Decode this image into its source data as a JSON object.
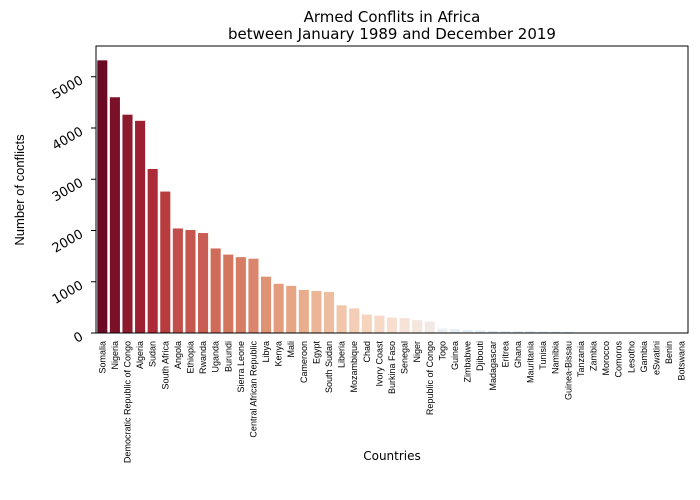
{
  "chart_data": {
    "type": "bar",
    "title": [
      "Armed Conflits in Africa",
      "between January 1989 and December 2019"
    ],
    "xlabel": "Countries",
    "ylabel": "Number of conflicts",
    "ylim": [
      0,
      5600
    ],
    "yticks": [
      0,
      1000,
      2000,
      3000,
      4000,
      5000
    ],
    "grid": false,
    "colormap": "RdBu",
    "categories": [
      "Somalia",
      "Nigeria",
      "Democratic Republic of Congo",
      "Algeria",
      "Sudan",
      "South Africa",
      "Angola",
      "Ethiopia",
      "Rwanda",
      "Uganda",
      "Burundi",
      "Sierra Leone",
      "Central African Republic",
      "Libya",
      "Kenya",
      "Mali",
      "Cameroon",
      "Egypt",
      "South Sudan",
      "Liberia",
      "Mozambique",
      "Chad",
      "Ivory Coast",
      "Burkina Faso",
      "Senegal",
      "Niger",
      "Republic of Congo",
      "Togo",
      "Guinea",
      "Zimbabwe",
      "Djibouti",
      "Madagascar",
      "Eritrea",
      "Ghana",
      "Mauritania",
      "Tunisia",
      "Namibia",
      "Guinea-Bissau",
      "Tanzania",
      "Zambia",
      "Morocco",
      "Comoros",
      "Lesotho",
      "Gambia",
      "eSwatini",
      "Benin",
      "Botswana"
    ],
    "values": [
      5320,
      4600,
      4260,
      4140,
      3200,
      2760,
      2040,
      2010,
      1950,
      1650,
      1530,
      1480,
      1450,
      1100,
      960,
      920,
      840,
      820,
      800,
      540,
      480,
      360,
      340,
      300,
      290,
      250,
      220,
      90,
      80,
      60,
      50,
      40,
      35,
      30,
      28,
      25,
      22,
      18,
      10,
      6,
      5,
      4,
      3,
      3,
      2,
      2,
      1
    ],
    "colors": [
      "#6a0a24",
      "#7b1129",
      "#8e1a2e",
      "#9c1f32",
      "#ad2a37",
      "#b83c3e",
      "#c14e4b",
      "#c6574f",
      "#c95d53",
      "#d16b59",
      "#d4755e",
      "#d77d65",
      "#da856d",
      "#df9274",
      "#e39d7d",
      "#e6a584",
      "#e8ad8c",
      "#ebb596",
      "#eebd9f",
      "#f1c6ab",
      "#f3cdb5",
      "#f5d3bd",
      "#f6d9c6",
      "#f7dece",
      "#f6e2d7",
      "#f5e6de",
      "#f2e8e4",
      "#eceff2",
      "#e7eef4",
      "#e3edf5",
      "#e0ecf5",
      "#ddebf4",
      "#dae9f3",
      "#d6e7f2",
      "#d2e5f1",
      "#cee3f0",
      "#cae1ef",
      "#c6dfee",
      "#c2dced",
      "#bedaec",
      "#bad8eb",
      "#b6d6ea",
      "#b2d3e8",
      "#aed1e7",
      "#aacfe6",
      "#a6cde5",
      "#a2cbe4"
    ]
  }
}
